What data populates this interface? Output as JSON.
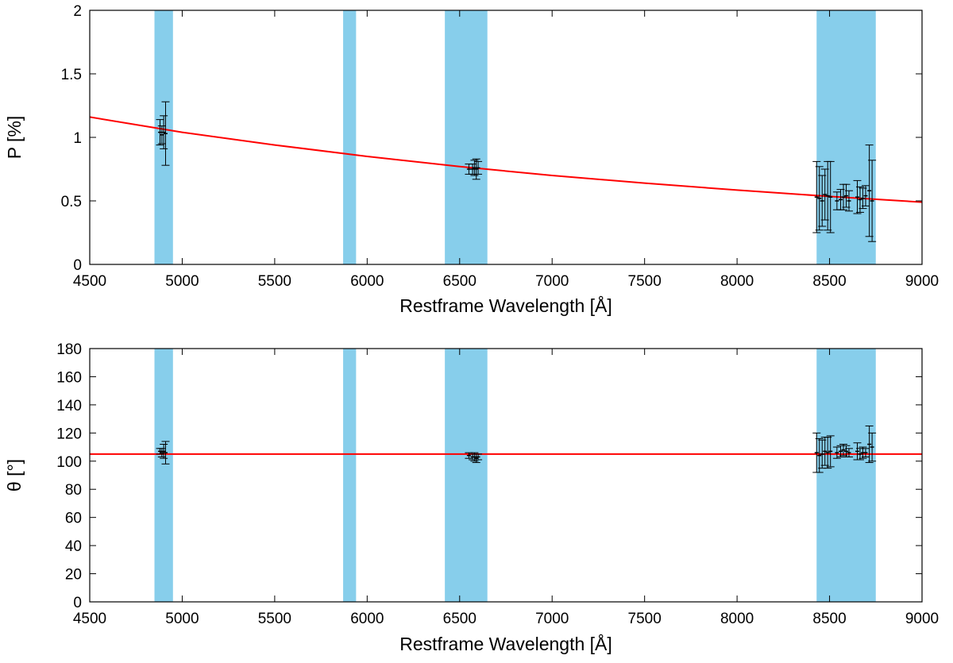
{
  "chart_data": [
    {
      "type": "scatter",
      "title": "",
      "xlabel": "Restframe Wavelength [Å]",
      "ylabel": "P [%]",
      "xlim": [
        4500,
        9000
      ],
      "ylim": [
        0,
        2
      ],
      "xticks": [
        4500,
        5000,
        5500,
        6000,
        6500,
        7000,
        7500,
        8000,
        8500,
        9000
      ],
      "yticks": [
        0,
        0.5,
        1,
        1.5,
        2
      ],
      "ytick_labels": [
        "0",
        "0.5",
        "1",
        "1.5",
        "2"
      ],
      "grid": false,
      "band_color": "#87ceeb",
      "shaded_bands": [
        [
          4850,
          4950
        ],
        [
          5870,
          5940
        ],
        [
          6420,
          6650
        ],
        [
          8430,
          8750
        ]
      ],
      "fit_color": "#ff0000",
      "fit_line": {
        "x": [
          4500,
          5000,
          5500,
          6000,
          6500,
          7000,
          7500,
          8000,
          8500,
          9000
        ],
        "y": [
          1.16,
          1.04,
          0.94,
          0.85,
          0.77,
          0.7,
          0.64,
          0.585,
          0.535,
          0.49
        ]
      },
      "points": [
        {
          "x": 4880,
          "y": 1.04,
          "err": 0.1
        },
        {
          "x": 4890,
          "y": 1.02,
          "err": 0.07
        },
        {
          "x": 4900,
          "y": 1.04,
          "err": 0.13
        },
        {
          "x": 4910,
          "y": 1.03,
          "err": 0.25
        },
        {
          "x": 6550,
          "y": 0.75,
          "err": 0.04
        },
        {
          "x": 6570,
          "y": 0.75,
          "err": 0.04
        },
        {
          "x": 6580,
          "y": 0.76,
          "err": 0.06
        },
        {
          "x": 6590,
          "y": 0.75,
          "err": 0.08
        },
        {
          "x": 6600,
          "y": 0.76,
          "err": 0.05
        },
        {
          "x": 8430,
          "y": 0.53,
          "err": 0.28
        },
        {
          "x": 8445,
          "y": 0.52,
          "err": 0.25
        },
        {
          "x": 8460,
          "y": 0.5,
          "err": 0.2
        },
        {
          "x": 8475,
          "y": 0.55,
          "err": 0.2
        },
        {
          "x": 8490,
          "y": 0.54,
          "err": 0.27
        },
        {
          "x": 8505,
          "y": 0.53,
          "err": 0.28
        },
        {
          "x": 8540,
          "y": 0.5,
          "err": 0.07
        },
        {
          "x": 8560,
          "y": 0.51,
          "err": 0.08
        },
        {
          "x": 8575,
          "y": 0.53,
          "err": 0.1
        },
        {
          "x": 8590,
          "y": 0.54,
          "err": 0.09
        },
        {
          "x": 8605,
          "y": 0.5,
          "err": 0.08
        },
        {
          "x": 8650,
          "y": 0.53,
          "err": 0.13
        },
        {
          "x": 8665,
          "y": 0.51,
          "err": 0.1
        },
        {
          "x": 8680,
          "y": 0.52,
          "err": 0.08
        },
        {
          "x": 8695,
          "y": 0.54,
          "err": 0.08
        },
        {
          "x": 8715,
          "y": 0.58,
          "err": 0.36
        },
        {
          "x": 8730,
          "y": 0.5,
          "err": 0.32
        }
      ]
    },
    {
      "type": "scatter",
      "title": "",
      "xlabel": "Restframe Wavelength [Å]",
      "ylabel": "θ [°]",
      "xlim": [
        4500,
        9000
      ],
      "ylim": [
        0,
        180
      ],
      "xticks": [
        4500,
        5000,
        5500,
        6000,
        6500,
        7000,
        7500,
        8000,
        8500,
        9000
      ],
      "yticks": [
        0,
        20,
        40,
        60,
        80,
        100,
        120,
        140,
        160,
        180
      ],
      "ytick_labels": [
        "0",
        "20",
        "40",
        "60",
        "80",
        "100",
        "120",
        "140",
        "160",
        "180"
      ],
      "grid": false,
      "band_color": "#87ceeb",
      "shaded_bands": [
        [
          4850,
          4950
        ],
        [
          5870,
          5940
        ],
        [
          6420,
          6650
        ],
        [
          8430,
          8750
        ]
      ],
      "fit_color": "#ff0000",
      "fit_line": {
        "x": [
          4500,
          9000
        ],
        "y": [
          105,
          105
        ]
      },
      "points": [
        {
          "x": 4880,
          "y": 107,
          "err": 2
        },
        {
          "x": 4890,
          "y": 106,
          "err": 3
        },
        {
          "x": 4900,
          "y": 107,
          "err": 5
        },
        {
          "x": 4910,
          "y": 106,
          "err": 8
        },
        {
          "x": 6550,
          "y": 104,
          "err": 2
        },
        {
          "x": 6570,
          "y": 103,
          "err": 2
        },
        {
          "x": 6580,
          "y": 103,
          "err": 3
        },
        {
          "x": 6590,
          "y": 102,
          "err": 3
        },
        {
          "x": 6600,
          "y": 103,
          "err": 2
        },
        {
          "x": 8430,
          "y": 106,
          "err": 14
        },
        {
          "x": 8445,
          "y": 104,
          "err": 12
        },
        {
          "x": 8460,
          "y": 105,
          "err": 10
        },
        {
          "x": 8475,
          "y": 107,
          "err": 10
        },
        {
          "x": 8490,
          "y": 106,
          "err": 11
        },
        {
          "x": 8505,
          "y": 107,
          "err": 11
        },
        {
          "x": 8540,
          "y": 106,
          "err": 4
        },
        {
          "x": 8560,
          "y": 107,
          "err": 4
        },
        {
          "x": 8575,
          "y": 108,
          "err": 4
        },
        {
          "x": 8590,
          "y": 107,
          "err": 4
        },
        {
          "x": 8605,
          "y": 106,
          "err": 3
        },
        {
          "x": 8650,
          "y": 107,
          "err": 6
        },
        {
          "x": 8665,
          "y": 105,
          "err": 4
        },
        {
          "x": 8680,
          "y": 106,
          "err": 4
        },
        {
          "x": 8695,
          "y": 106,
          "err": 3
        },
        {
          "x": 8715,
          "y": 112,
          "err": 13
        },
        {
          "x": 8730,
          "y": 110,
          "err": 10
        }
      ]
    }
  ]
}
